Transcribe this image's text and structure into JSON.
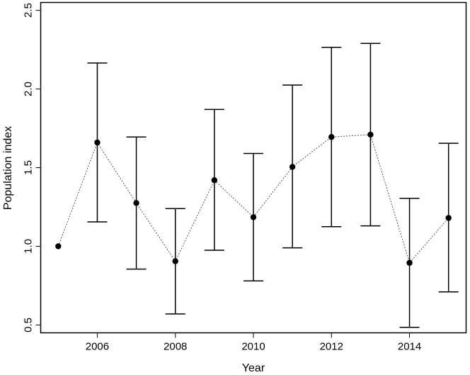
{
  "chart_data": {
    "type": "scatter",
    "title": "",
    "xlabel": "Year",
    "ylabel": "Population index",
    "xlim": [
      2004.55,
      2015.45
    ],
    "ylim": [
      0.45,
      2.55
    ],
    "x_ticks": [
      2006,
      2008,
      2010,
      2012,
      2014
    ],
    "x_tick_labels": [
      "2006",
      "2008",
      "2010",
      "2012",
      "2014"
    ],
    "y_ticks": [
      0.5,
      1.0,
      1.5,
      2.0,
      2.5
    ],
    "y_tick_labels": [
      "0.5",
      "1.0",
      "1.5",
      "2.0",
      "2.5"
    ],
    "grid": false,
    "connecting_line": "dotted",
    "series": [
      {
        "x": [
          2005,
          2006,
          2007,
          2008,
          2009,
          2010,
          2011,
          2012,
          2013,
          2014,
          2015
        ],
        "y": [
          1.0,
          1.66,
          1.275,
          0.905,
          1.42,
          1.185,
          1.505,
          1.695,
          1.71,
          0.895,
          1.18
        ],
        "lower": [
          null,
          1.155,
          0.855,
          0.57,
          0.975,
          0.78,
          0.99,
          1.125,
          1.13,
          0.485,
          0.71
        ],
        "upper": [
          null,
          2.165,
          1.695,
          1.24,
          1.87,
          1.59,
          2.025,
          2.265,
          2.29,
          1.305,
          1.655
        ]
      }
    ],
    "colors": {
      "points": "#000000",
      "error_bars": "#000000",
      "line": "#555555"
    }
  }
}
